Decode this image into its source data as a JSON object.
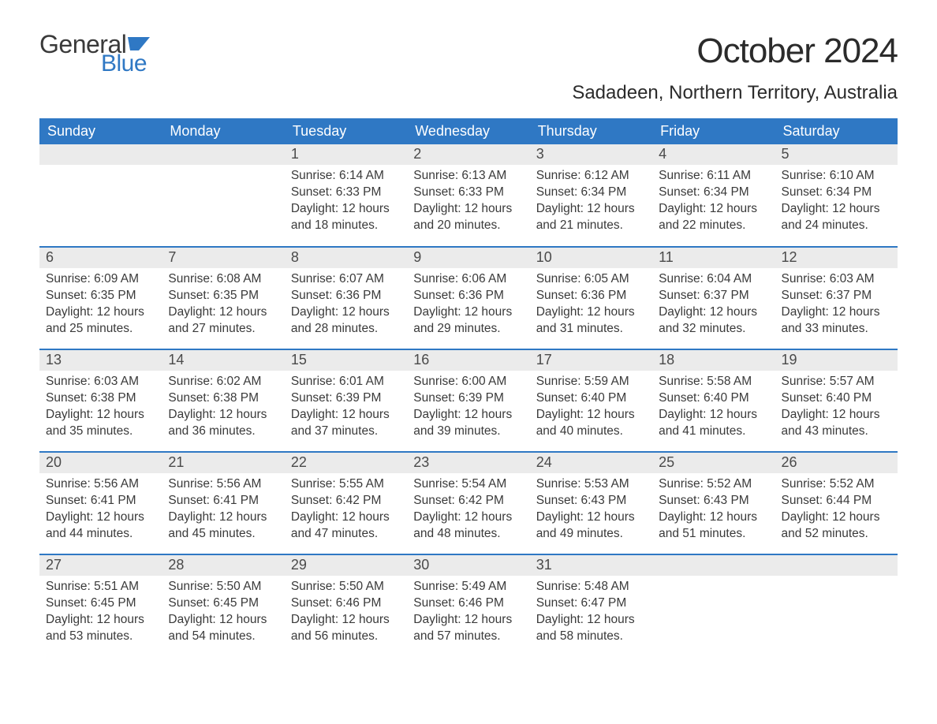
{
  "brand": {
    "line1": "General",
    "line2": "Blue"
  },
  "title": "October 2024",
  "location": "Sadadeen, Northern Territory, Australia",
  "colors": {
    "header_bg": "#2f78c4",
    "header_text": "#ffffff",
    "daynum_bg": "#ebebeb",
    "row_divider": "#2f78c4",
    "body_text": "#3a3a3a",
    "logo_blue": "#2f78c4",
    "page_bg": "#ffffff"
  },
  "typography": {
    "month_title_fontsize": 44,
    "location_fontsize": 24,
    "weekday_fontsize": 18,
    "daynum_fontsize": 18,
    "body_fontsize": 15.5,
    "font_family": "Arial"
  },
  "weekdays": [
    "Sunday",
    "Monday",
    "Tuesday",
    "Wednesday",
    "Thursday",
    "Friday",
    "Saturday"
  ],
  "weeks": [
    [
      {
        "n": "",
        "sunrise": "",
        "sunset": "",
        "daylight1": "",
        "daylight2": ""
      },
      {
        "n": "",
        "sunrise": "",
        "sunset": "",
        "daylight1": "",
        "daylight2": ""
      },
      {
        "n": "1",
        "sunrise": "Sunrise: 6:14 AM",
        "sunset": "Sunset: 6:33 PM",
        "daylight1": "Daylight: 12 hours",
        "daylight2": "and 18 minutes."
      },
      {
        "n": "2",
        "sunrise": "Sunrise: 6:13 AM",
        "sunset": "Sunset: 6:33 PM",
        "daylight1": "Daylight: 12 hours",
        "daylight2": "and 20 minutes."
      },
      {
        "n": "3",
        "sunrise": "Sunrise: 6:12 AM",
        "sunset": "Sunset: 6:34 PM",
        "daylight1": "Daylight: 12 hours",
        "daylight2": "and 21 minutes."
      },
      {
        "n": "4",
        "sunrise": "Sunrise: 6:11 AM",
        "sunset": "Sunset: 6:34 PM",
        "daylight1": "Daylight: 12 hours",
        "daylight2": "and 22 minutes."
      },
      {
        "n": "5",
        "sunrise": "Sunrise: 6:10 AM",
        "sunset": "Sunset: 6:34 PM",
        "daylight1": "Daylight: 12 hours",
        "daylight2": "and 24 minutes."
      }
    ],
    [
      {
        "n": "6",
        "sunrise": "Sunrise: 6:09 AM",
        "sunset": "Sunset: 6:35 PM",
        "daylight1": "Daylight: 12 hours",
        "daylight2": "and 25 minutes."
      },
      {
        "n": "7",
        "sunrise": "Sunrise: 6:08 AM",
        "sunset": "Sunset: 6:35 PM",
        "daylight1": "Daylight: 12 hours",
        "daylight2": "and 27 minutes."
      },
      {
        "n": "8",
        "sunrise": "Sunrise: 6:07 AM",
        "sunset": "Sunset: 6:36 PM",
        "daylight1": "Daylight: 12 hours",
        "daylight2": "and 28 minutes."
      },
      {
        "n": "9",
        "sunrise": "Sunrise: 6:06 AM",
        "sunset": "Sunset: 6:36 PM",
        "daylight1": "Daylight: 12 hours",
        "daylight2": "and 29 minutes."
      },
      {
        "n": "10",
        "sunrise": "Sunrise: 6:05 AM",
        "sunset": "Sunset: 6:36 PM",
        "daylight1": "Daylight: 12 hours",
        "daylight2": "and 31 minutes."
      },
      {
        "n": "11",
        "sunrise": "Sunrise: 6:04 AM",
        "sunset": "Sunset: 6:37 PM",
        "daylight1": "Daylight: 12 hours",
        "daylight2": "and 32 minutes."
      },
      {
        "n": "12",
        "sunrise": "Sunrise: 6:03 AM",
        "sunset": "Sunset: 6:37 PM",
        "daylight1": "Daylight: 12 hours",
        "daylight2": "and 33 minutes."
      }
    ],
    [
      {
        "n": "13",
        "sunrise": "Sunrise: 6:03 AM",
        "sunset": "Sunset: 6:38 PM",
        "daylight1": "Daylight: 12 hours",
        "daylight2": "and 35 minutes."
      },
      {
        "n": "14",
        "sunrise": "Sunrise: 6:02 AM",
        "sunset": "Sunset: 6:38 PM",
        "daylight1": "Daylight: 12 hours",
        "daylight2": "and 36 minutes."
      },
      {
        "n": "15",
        "sunrise": "Sunrise: 6:01 AM",
        "sunset": "Sunset: 6:39 PM",
        "daylight1": "Daylight: 12 hours",
        "daylight2": "and 37 minutes."
      },
      {
        "n": "16",
        "sunrise": "Sunrise: 6:00 AM",
        "sunset": "Sunset: 6:39 PM",
        "daylight1": "Daylight: 12 hours",
        "daylight2": "and 39 minutes."
      },
      {
        "n": "17",
        "sunrise": "Sunrise: 5:59 AM",
        "sunset": "Sunset: 6:40 PM",
        "daylight1": "Daylight: 12 hours",
        "daylight2": "and 40 minutes."
      },
      {
        "n": "18",
        "sunrise": "Sunrise: 5:58 AM",
        "sunset": "Sunset: 6:40 PM",
        "daylight1": "Daylight: 12 hours",
        "daylight2": "and 41 minutes."
      },
      {
        "n": "19",
        "sunrise": "Sunrise: 5:57 AM",
        "sunset": "Sunset: 6:40 PM",
        "daylight1": "Daylight: 12 hours",
        "daylight2": "and 43 minutes."
      }
    ],
    [
      {
        "n": "20",
        "sunrise": "Sunrise: 5:56 AM",
        "sunset": "Sunset: 6:41 PM",
        "daylight1": "Daylight: 12 hours",
        "daylight2": "and 44 minutes."
      },
      {
        "n": "21",
        "sunrise": "Sunrise: 5:56 AM",
        "sunset": "Sunset: 6:41 PM",
        "daylight1": "Daylight: 12 hours",
        "daylight2": "and 45 minutes."
      },
      {
        "n": "22",
        "sunrise": "Sunrise: 5:55 AM",
        "sunset": "Sunset: 6:42 PM",
        "daylight1": "Daylight: 12 hours",
        "daylight2": "and 47 minutes."
      },
      {
        "n": "23",
        "sunrise": "Sunrise: 5:54 AM",
        "sunset": "Sunset: 6:42 PM",
        "daylight1": "Daylight: 12 hours",
        "daylight2": "and 48 minutes."
      },
      {
        "n": "24",
        "sunrise": "Sunrise: 5:53 AM",
        "sunset": "Sunset: 6:43 PM",
        "daylight1": "Daylight: 12 hours",
        "daylight2": "and 49 minutes."
      },
      {
        "n": "25",
        "sunrise": "Sunrise: 5:52 AM",
        "sunset": "Sunset: 6:43 PM",
        "daylight1": "Daylight: 12 hours",
        "daylight2": "and 51 minutes."
      },
      {
        "n": "26",
        "sunrise": "Sunrise: 5:52 AM",
        "sunset": "Sunset: 6:44 PM",
        "daylight1": "Daylight: 12 hours",
        "daylight2": "and 52 minutes."
      }
    ],
    [
      {
        "n": "27",
        "sunrise": "Sunrise: 5:51 AM",
        "sunset": "Sunset: 6:45 PM",
        "daylight1": "Daylight: 12 hours",
        "daylight2": "and 53 minutes."
      },
      {
        "n": "28",
        "sunrise": "Sunrise: 5:50 AM",
        "sunset": "Sunset: 6:45 PM",
        "daylight1": "Daylight: 12 hours",
        "daylight2": "and 54 minutes."
      },
      {
        "n": "29",
        "sunrise": "Sunrise: 5:50 AM",
        "sunset": "Sunset: 6:46 PM",
        "daylight1": "Daylight: 12 hours",
        "daylight2": "and 56 minutes."
      },
      {
        "n": "30",
        "sunrise": "Sunrise: 5:49 AM",
        "sunset": "Sunset: 6:46 PM",
        "daylight1": "Daylight: 12 hours",
        "daylight2": "and 57 minutes."
      },
      {
        "n": "31",
        "sunrise": "Sunrise: 5:48 AM",
        "sunset": "Sunset: 6:47 PM",
        "daylight1": "Daylight: 12 hours",
        "daylight2": "and 58 minutes."
      },
      {
        "n": "",
        "sunrise": "",
        "sunset": "",
        "daylight1": "",
        "daylight2": ""
      },
      {
        "n": "",
        "sunrise": "",
        "sunset": "",
        "daylight1": "",
        "daylight2": ""
      }
    ]
  ]
}
